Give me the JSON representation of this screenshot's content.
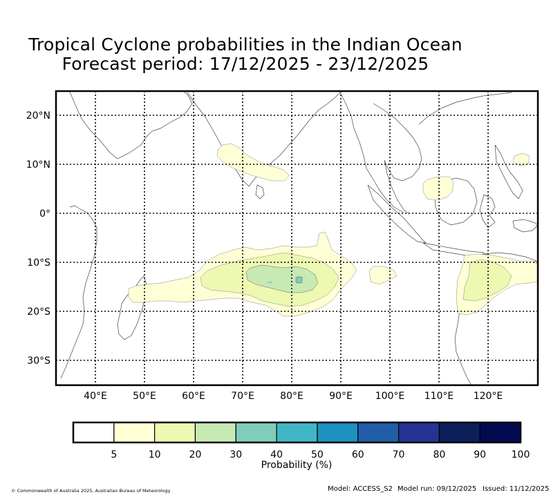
{
  "title": {
    "line1": "Tropical Cyclone probabilities in the Indian Ocean",
    "line2": "Forecast period: 17/12/2025 - 23/12/2025"
  },
  "map": {
    "lat_labels": [
      "20°N",
      "10°N",
      "0°",
      "10°S",
      "20°S",
      "30°S"
    ],
    "lon_labels": [
      "40°E",
      "50°E",
      "60°E",
      "70°E",
      "80°E",
      "90°E",
      "100°E",
      "110°E",
      "120°E"
    ],
    "probability_regions": [
      {
        "name": "arabian-sea-region",
        "level": "5-10"
      },
      {
        "name": "south-indian-ocean-band",
        "level": "5-10"
      },
      {
        "name": "south-indian-ocean-band-inner",
        "level": "10-20"
      },
      {
        "name": "south-indian-ocean-band-core",
        "level": "20-30"
      },
      {
        "name": "south-indian-ocean-band-peak",
        "level": "30-40"
      },
      {
        "name": "borneo-region",
        "level": "5-10"
      },
      {
        "name": "timor-sea-region",
        "level": "5-10"
      },
      {
        "name": "timor-sea-region-inner",
        "level": "10-20"
      }
    ]
  },
  "colorbar": {
    "label": "Probability (%)",
    "ticks": [
      "5",
      "10",
      "20",
      "30",
      "40",
      "50",
      "60",
      "70",
      "80",
      "90",
      "100"
    ],
    "colors": [
      "#ffffff",
      "#ffffd6",
      "#edf8b1",
      "#c7e9b4",
      "#7fcdbb",
      "#41b6c4",
      "#1d91c0",
      "#225ea8",
      "#253494",
      "#0c1f5a",
      "#020a50"
    ]
  },
  "footer": {
    "copyright": "© Commonwealth of Australia 2025, Australian Bureau of Meteorology",
    "model": "Model: ACCESS_S2",
    "model_run": "Model run: 09/12/2025",
    "issued": "Issued: 11/12/2025"
  }
}
